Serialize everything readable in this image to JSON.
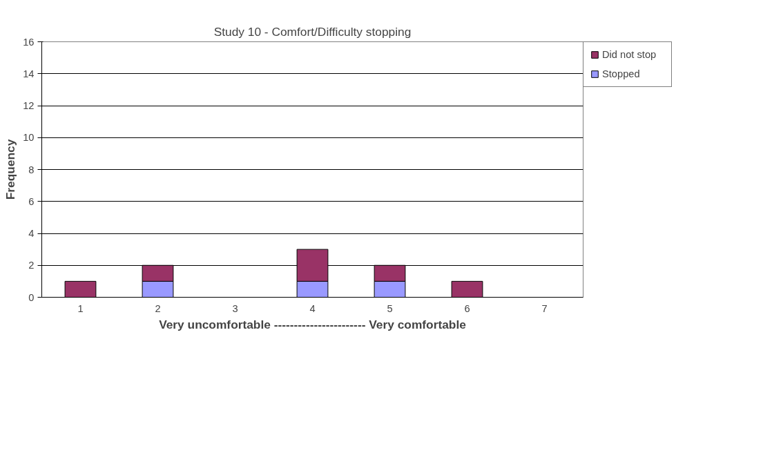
{
  "chart_data": {
    "type": "bar",
    "title": "Study 10 - Comfort/Difficulty stopping",
    "xlabel": "Very uncomfortable ----------------------- Very comfortable",
    "ylabel": "Frequency",
    "categories": [
      "1",
      "2",
      "3",
      "4",
      "5",
      "6",
      "7"
    ],
    "stacked": true,
    "series": [
      {
        "name": "Stopped",
        "color": "#9999ff",
        "values": [
          0,
          1,
          0,
          1,
          1,
          0,
          0
        ]
      },
      {
        "name": "Did not stop",
        "color": "#993366",
        "values": [
          1,
          1,
          0,
          2,
          1,
          1,
          0
        ]
      }
    ],
    "ylim": [
      0,
      16
    ],
    "yticks": [
      0,
      2,
      4,
      6,
      8,
      10,
      12,
      14,
      16
    ],
    "grid": "y",
    "legend": "right"
  }
}
